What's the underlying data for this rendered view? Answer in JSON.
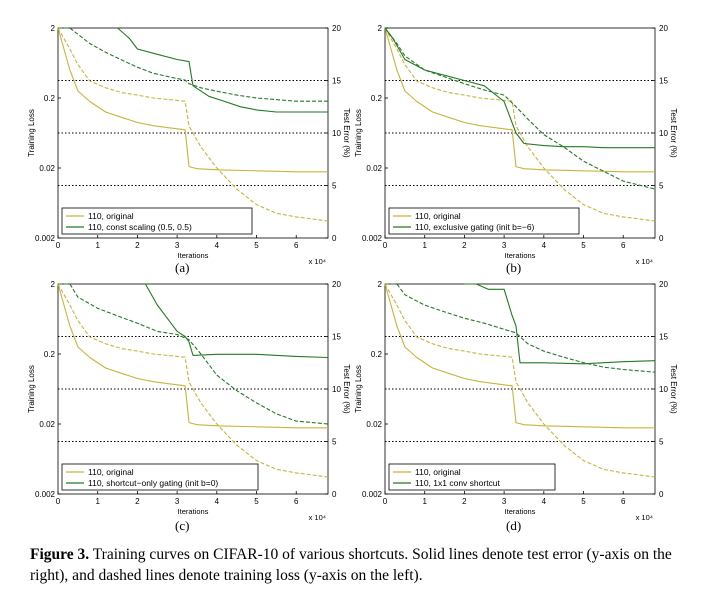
{
  "figure": {
    "caption_label": "Figure 3.",
    "caption_text": "Training curves on CIFAR-10 of various shortcuts. Solid lines denote test error (y-axis on the right), and dashed lines denote training loss (y-axis on the left)."
  },
  "colors": {
    "original": "#c8b53a",
    "variant": "#237a23",
    "grid": "#000000"
  },
  "chart_data": [
    {
      "type": "line",
      "panel_label": "(a)",
      "xlabel": "Iterations",
      "x_multiplier": "x 10⁴",
      "ylabel_left": "Training Loss",
      "ylabel_right": "Test Error (%)",
      "xlim": [
        0,
        6.8
      ],
      "ylim_left": [
        0.002,
        2
      ],
      "y_left_scale": "log",
      "ylim_right": [
        0,
        20
      ],
      "x_ticks": [
        "0",
        "1",
        "2",
        "3",
        "4",
        "5",
        "6"
      ],
      "y_left_ticks": [
        "2",
        "0.2",
        "0.02",
        "0.002"
      ],
      "y_right_ticks": [
        "0",
        "5",
        "10",
        "15",
        "20"
      ],
      "dotted_grid_right": [
        5,
        10,
        15
      ],
      "legend_position": "bottom-left",
      "series": [
        {
          "name": "110, original",
          "metric": "test_error",
          "x": [
            0,
            0.3,
            0.5,
            0.8,
            1.2,
            1.6,
            2.0,
            2.4,
            2.8,
            3.2,
            3.3,
            3.5,
            4,
            5,
            6,
            6.8
          ],
          "y": [
            20,
            16,
            14,
            13,
            12,
            11.5,
            11,
            10.7,
            10.5,
            10.3,
            6.8,
            6.6,
            6.5,
            6.4,
            6.3,
            6.3
          ]
        },
        {
          "name": "110, original",
          "metric": "training_loss",
          "x": [
            0,
            0.3,
            0.5,
            0.8,
            1.2,
            1.6,
            2.0,
            2.4,
            2.8,
            3.2,
            3.3,
            3.6,
            4,
            4.5,
            5,
            5.5,
            6,
            6.8
          ],
          "y": [
            2,
            1.0,
            0.6,
            0.35,
            0.28,
            0.24,
            0.22,
            0.2,
            0.19,
            0.18,
            0.08,
            0.04,
            0.02,
            0.01,
            0.006,
            0.0045,
            0.004,
            0.0035
          ]
        },
        {
          "name": "110, const scaling (0.5, 0.5)",
          "metric": "test_error",
          "x": [
            1.5,
            1.8,
            2.0,
            2.5,
            3.0,
            3.3,
            3.4,
            3.8,
            4.2,
            4.6,
            5,
            5.5,
            6,
            6.8
          ],
          "y": [
            20,
            19,
            18,
            17.5,
            17,
            16.8,
            14.5,
            13.5,
            13,
            12.5,
            12.2,
            12,
            12,
            12
          ]
        },
        {
          "name": "110, const scaling (0.5, 0.5)",
          "metric": "training_loss",
          "x": [
            0,
            0.3,
            0.8,
            1.2,
            1.6,
            2.0,
            2.4,
            2.8,
            3.2,
            3.3,
            3.6,
            4,
            4.5,
            5,
            5.5,
            6,
            6.8
          ],
          "y": [
            2,
            2,
            1.2,
            0.9,
            0.7,
            0.55,
            0.45,
            0.4,
            0.36,
            0.32,
            0.28,
            0.25,
            0.22,
            0.2,
            0.19,
            0.18,
            0.18
          ]
        }
      ]
    },
    {
      "type": "line",
      "panel_label": "(b)",
      "xlabel": "Iterations",
      "x_multiplier": "x 10⁴",
      "ylabel_left": "Training Loss",
      "ylabel_right": "Test Error (%)",
      "xlim": [
        0,
        6.8
      ],
      "ylim_left": [
        0.002,
        2
      ],
      "y_left_scale": "log",
      "ylim_right": [
        0,
        20
      ],
      "x_ticks": [
        "0",
        "1",
        "2",
        "3",
        "4",
        "5",
        "6"
      ],
      "y_left_ticks": [
        "2",
        "0.2",
        "0.02",
        "0.002"
      ],
      "y_right_ticks": [
        "0",
        "5",
        "10",
        "15",
        "20"
      ],
      "dotted_grid_right": [
        5,
        10,
        15
      ],
      "legend_position": "bottom-left",
      "series": [
        {
          "name": "110, original",
          "metric": "test_error",
          "x": [
            0,
            0.3,
            0.5,
            0.8,
            1.2,
            1.6,
            2.0,
            2.4,
            2.8,
            3.2,
            3.3,
            3.5,
            4,
            5,
            6,
            6.8
          ],
          "y": [
            20,
            16,
            14,
            13,
            12,
            11.5,
            11,
            10.7,
            10.5,
            10.3,
            6.8,
            6.6,
            6.5,
            6.4,
            6.3,
            6.3
          ]
        },
        {
          "name": "110, original",
          "metric": "training_loss",
          "x": [
            0,
            0.3,
            0.5,
            0.8,
            1.2,
            1.6,
            2.0,
            2.4,
            2.8,
            3.2,
            3.3,
            3.6,
            4,
            4.5,
            5,
            5.5,
            6,
            6.8
          ],
          "y": [
            2,
            1.0,
            0.6,
            0.35,
            0.28,
            0.24,
            0.22,
            0.2,
            0.19,
            0.18,
            0.08,
            0.04,
            0.02,
            0.01,
            0.006,
            0.0045,
            0.004,
            0.0035
          ]
        },
        {
          "name": "110, exclusive gating (init b=−6)",
          "metric": "test_error",
          "x": [
            0,
            0.2,
            0.5,
            1,
            1.5,
            2,
            2.5,
            3,
            3.3,
            3.5,
            4,
            4.5,
            5,
            5.5,
            6,
            6.8
          ],
          "y": [
            20,
            19,
            17,
            16,
            15.5,
            15,
            14.5,
            13,
            10,
            9,
            8.8,
            8.7,
            8.7,
            8.6,
            8.6,
            8.6
          ]
        },
        {
          "name": "110, exclusive gating (init b=−6)",
          "metric": "training_loss",
          "x": [
            0,
            0.3,
            0.5,
            1,
            1.5,
            2,
            2.5,
            3,
            3.3,
            3.6,
            4,
            4.5,
            5,
            5.5,
            6,
            6.8
          ],
          "y": [
            2,
            1.2,
            0.8,
            0.5,
            0.4,
            0.32,
            0.26,
            0.22,
            0.15,
            0.1,
            0.06,
            0.04,
            0.025,
            0.018,
            0.013,
            0.01
          ]
        }
      ]
    },
    {
      "type": "line",
      "panel_label": "(c)",
      "xlabel": "Iterations",
      "x_multiplier": "x 10⁴",
      "ylabel_left": "Training Loss",
      "ylabel_right": "Test Error (%)",
      "xlim": [
        0,
        6.8
      ],
      "ylim_left": [
        0.002,
        2
      ],
      "y_left_scale": "log",
      "ylim_right": [
        0,
        20
      ],
      "x_ticks": [
        "0",
        "1",
        "2",
        "3",
        "4",
        "5",
        "6"
      ],
      "y_left_ticks": [
        "2",
        "0.2",
        "0.02",
        "0.002"
      ],
      "y_right_ticks": [
        "0",
        "5",
        "10",
        "15",
        "20"
      ],
      "dotted_grid_right": [
        5,
        10,
        15
      ],
      "legend_position": "bottom-left",
      "series": [
        {
          "name": "110, original",
          "metric": "test_error",
          "x": [
            0,
            0.3,
            0.5,
            0.8,
            1.2,
            1.6,
            2.0,
            2.4,
            2.8,
            3.2,
            3.3,
            3.5,
            4,
            5,
            6,
            6.8
          ],
          "y": [
            20,
            16,
            14,
            13,
            12,
            11.5,
            11,
            10.7,
            10.5,
            10.3,
            6.8,
            6.6,
            6.5,
            6.4,
            6.3,
            6.3
          ]
        },
        {
          "name": "110, original",
          "metric": "training_loss",
          "x": [
            0,
            0.3,
            0.5,
            0.8,
            1.2,
            1.6,
            2.0,
            2.4,
            2.8,
            3.2,
            3.3,
            3.6,
            4,
            4.5,
            5,
            5.5,
            6,
            6.8
          ],
          "y": [
            2,
            1.0,
            0.6,
            0.35,
            0.28,
            0.24,
            0.22,
            0.2,
            0.19,
            0.18,
            0.08,
            0.04,
            0.02,
            0.01,
            0.006,
            0.0045,
            0.004,
            0.0035
          ]
        },
        {
          "name": "110, shortcut−only gating (init b=0)",
          "metric": "test_error",
          "x": [
            2.2,
            2.5,
            2.8,
            3.0,
            3.2,
            3.3,
            3.4,
            4,
            5,
            6,
            6.8
          ],
          "y": [
            20,
            18,
            16.5,
            15.5,
            15,
            14.5,
            13.2,
            13.3,
            13.3,
            13.1,
            13
          ]
        },
        {
          "name": "110, shortcut−only gating (init b=0)",
          "metric": "training_loss",
          "x": [
            0,
            0.3,
            0.5,
            1,
            1.5,
            2,
            2.5,
            3,
            3.3,
            3.6,
            4,
            4.5,
            5,
            5.5,
            6,
            6.8
          ],
          "y": [
            2,
            2,
            1.3,
            0.9,
            0.7,
            0.55,
            0.42,
            0.38,
            0.32,
            0.2,
            0.1,
            0.06,
            0.04,
            0.028,
            0.022,
            0.02
          ]
        }
      ]
    },
    {
      "type": "line",
      "panel_label": "(d)",
      "xlabel": "Iterations",
      "x_multiplier": "x 10⁴",
      "ylabel_left": "Training Loss",
      "ylabel_right": "Test Error (%)",
      "xlim": [
        0,
        6.8
      ],
      "ylim_left": [
        0.002,
        2
      ],
      "y_left_scale": "log",
      "ylim_right": [
        0,
        20
      ],
      "x_ticks": [
        "0",
        "1",
        "2",
        "3",
        "4",
        "5",
        "6"
      ],
      "y_left_ticks": [
        "2",
        "0.2",
        "0.02",
        "0.002"
      ],
      "y_right_ticks": [
        "0",
        "5",
        "10",
        "15",
        "20"
      ],
      "dotted_grid_right": [
        5,
        10,
        15
      ],
      "legend_position": "bottom-left",
      "series": [
        {
          "name": "110, original",
          "metric": "test_error",
          "x": [
            0,
            0.3,
            0.5,
            0.8,
            1.2,
            1.6,
            2.0,
            2.4,
            2.8,
            3.2,
            3.3,
            3.5,
            4,
            5,
            6,
            6.8
          ],
          "y": [
            20,
            16,
            14,
            13,
            12,
            11.5,
            11,
            10.7,
            10.5,
            10.3,
            6.8,
            6.6,
            6.5,
            6.4,
            6.3,
            6.3
          ]
        },
        {
          "name": "110, original",
          "metric": "training_loss",
          "x": [
            0,
            0.3,
            0.5,
            0.8,
            1.2,
            1.6,
            2.0,
            2.4,
            2.8,
            3.2,
            3.3,
            3.6,
            4,
            4.5,
            5,
            5.5,
            6,
            6.8
          ],
          "y": [
            2,
            1.0,
            0.6,
            0.35,
            0.28,
            0.24,
            0.22,
            0.2,
            0.19,
            0.18,
            0.08,
            0.04,
            0.02,
            0.01,
            0.006,
            0.0045,
            0.004,
            0.0035
          ]
        },
        {
          "name": "110, 1x1 conv shortcut",
          "metric": "test_error",
          "x": [
            2.0,
            2.3,
            2.6,
            3.0,
            3.2,
            3.3,
            3.4,
            4,
            5,
            6,
            6.8
          ],
          "y": [
            20,
            20,
            19.5,
            19.5,
            17,
            16,
            12.5,
            12.5,
            12.4,
            12.6,
            12.7
          ]
        },
        {
          "name": "110, 1x1 conv shortcut",
          "metric": "training_loss",
          "x": [
            0,
            0.3,
            0.5,
            1,
            1.5,
            2,
            2.5,
            3,
            3.3,
            3.6,
            4,
            4.5,
            5,
            5.5,
            6,
            6.8
          ],
          "y": [
            2,
            2,
            1.4,
            1.0,
            0.8,
            0.65,
            0.55,
            0.45,
            0.4,
            0.28,
            0.22,
            0.18,
            0.15,
            0.13,
            0.12,
            0.11
          ]
        }
      ]
    }
  ]
}
